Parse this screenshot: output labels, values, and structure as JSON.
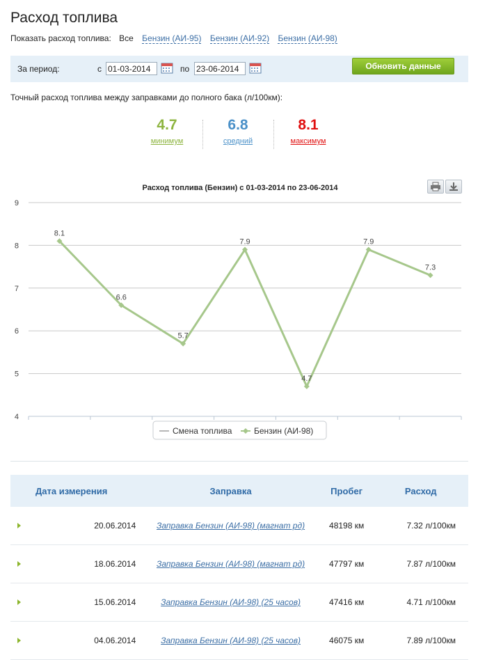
{
  "page": {
    "title": "Расход топлива"
  },
  "filter": {
    "label": "Показать расход топлива:",
    "options": [
      "Все",
      "Бензин (АИ-95)",
      "Бензин (АИ-92)",
      "Бензин (АИ-98)"
    ]
  },
  "period": {
    "label": "За период:",
    "from_label": "с",
    "from_value": "01-03-2014",
    "to_label": "по",
    "to_value": "23-06-2014",
    "refresh_label": "Обновить данные"
  },
  "stats": {
    "caption": "Точный расход топлива между заправками до полного бака (л/100км):",
    "min": {
      "value": "4.7",
      "label": "минимум",
      "color": "#8db43f"
    },
    "avg": {
      "value": "6.8",
      "label": "средний",
      "color": "#4a90c8"
    },
    "max": {
      "value": "8.1",
      "label": "максимум",
      "color": "#e01010"
    }
  },
  "chart_data": {
    "type": "line",
    "title": "Расход топлива (Бензин) с 01-03-2014 по 23-06-2014",
    "ylim": [
      4,
      9
    ],
    "yticks": [
      4,
      5,
      6,
      7,
      8,
      9
    ],
    "grid": true,
    "legend": "bottom",
    "legend_entries": [
      "Смена топлива",
      "Бензин (АИ-98)"
    ],
    "series": [
      {
        "name": "Бензин (АИ-98)",
        "values": [
          8.1,
          6.6,
          5.7,
          7.9,
          4.7,
          7.9,
          7.3
        ],
        "labels": [
          "8.1",
          "6.6",
          "5.7",
          "7.9",
          "4.7",
          "7.9",
          "7.3"
        ],
        "color": "#a6c78b"
      }
    ]
  },
  "table": {
    "headers": {
      "date": "Дата измерения",
      "station": "Заправка",
      "mileage": "Пробег",
      "consumption": "Расход"
    },
    "rows": [
      {
        "date": "20.06.2014",
        "station": "Заправка Бензин (АИ-98) (магнат рд)",
        "mileage": "48198 км",
        "consumption": "7.32 л/100км"
      },
      {
        "date": "18.06.2014",
        "station": "Заправка Бензин (АИ-98) (магнат рд)",
        "mileage": "47797 км",
        "consumption": "7.87 л/100км"
      },
      {
        "date": "15.06.2014",
        "station": "Заправка Бензин (АИ-98) (25 часов)",
        "mileage": "47416 км",
        "consumption": "4.71 л/100км"
      },
      {
        "date": "04.06.2014",
        "station": "Заправка Бензин (АИ-98) (25 часов)",
        "mileage": "46075 км",
        "consumption": "7.89 л/100км"
      }
    ]
  }
}
